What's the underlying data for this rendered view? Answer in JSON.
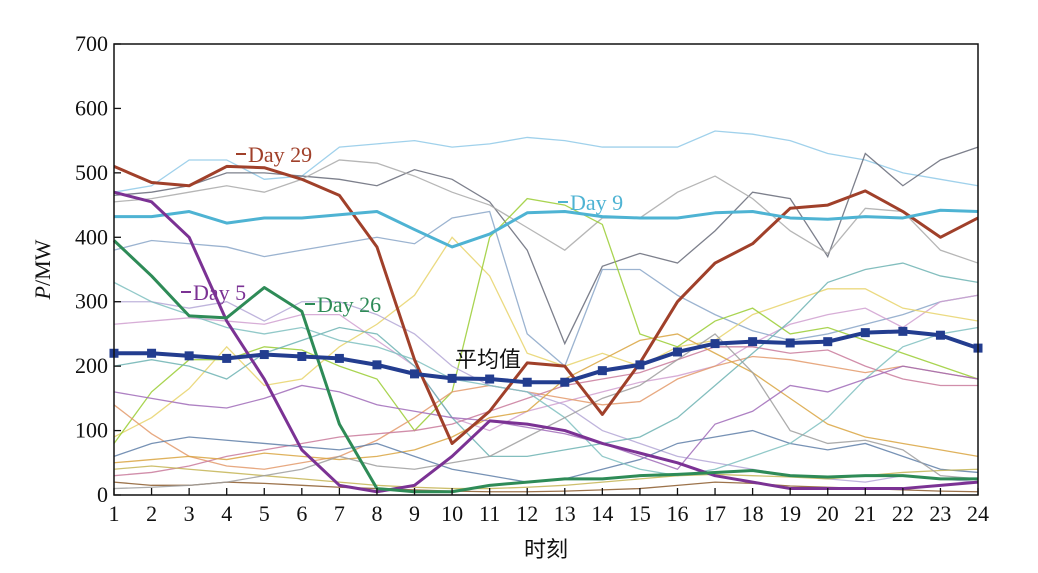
{
  "chart_data": {
    "type": "line",
    "x": [
      1,
      2,
      3,
      4,
      5,
      6,
      7,
      8,
      9,
      10,
      11,
      12,
      13,
      14,
      15,
      16,
      17,
      18,
      19,
      20,
      21,
      22,
      23,
      24
    ],
    "xlabel": "时刻",
    "ylabel": {
      "italic": "P",
      "rest": "/MW"
    },
    "ylim": [
      0,
      700
    ],
    "yticks": [
      0,
      100,
      200,
      300,
      400,
      500,
      600,
      700
    ],
    "grid": false,
    "series": [
      {
        "name": "Day 29",
        "color": "#a0402a",
        "width": 3,
        "values": [
          510,
          485,
          480,
          510,
          508,
          490,
          465,
          385,
          210,
          80,
          130,
          205,
          200,
          125,
          205,
          300,
          360,
          390,
          445,
          450,
          472,
          440,
          400,
          430
        ]
      },
      {
        "name": "Day 9",
        "color": "#4eb3d3",
        "width": 3,
        "values": [
          432,
          432,
          440,
          422,
          430,
          430,
          435,
          440,
          412,
          385,
          405,
          438,
          440,
          432,
          430,
          430,
          438,
          440,
          430,
          428,
          432,
          430,
          442,
          440
        ]
      },
      {
        "name": "Day 5",
        "color": "#7b3294",
        "width": 3,
        "values": [
          470,
          455,
          400,
          270,
          180,
          70,
          15,
          5,
          15,
          60,
          115,
          110,
          100,
          80,
          65,
          50,
          30,
          20,
          10,
          10,
          10,
          10,
          15,
          20
        ]
      },
      {
        "name": "Day 26",
        "color": "#2e8b57",
        "width": 3,
        "values": [
          395,
          340,
          278,
          275,
          322,
          285,
          110,
          10,
          5,
          5,
          15,
          20,
          25,
          25,
          30,
          32,
          35,
          38,
          30,
          28,
          30,
          30,
          25,
          25
        ]
      },
      {
        "name": "平均值",
        "color": "#233d8f",
        "width": 4,
        "marker": "square",
        "values": [
          220,
          220,
          216,
          212,
          218,
          215,
          212,
          202,
          188,
          181,
          180,
          175,
          175,
          193,
          202,
          222,
          235,
          238,
          236,
          238,
          252,
          254,
          248,
          228
        ]
      }
    ],
    "background_series": [
      {
        "color": "#8fc9e8",
        "values": [
          470,
          480,
          520,
          520,
          490,
          495,
          540,
          545,
          550,
          540,
          545,
          555,
          550,
          540,
          540,
          540,
          565,
          560,
          550,
          530,
          520,
          500,
          490,
          480
        ]
      },
      {
        "color": "#666a78",
        "values": [
          465,
          470,
          480,
          500,
          500,
          495,
          490,
          480,
          505,
          490,
          455,
          380,
          235,
          355,
          375,
          360,
          410,
          470,
          460,
          370,
          530,
          480,
          520,
          540
        ]
      },
      {
        "color": "#a9a9a9",
        "values": [
          455,
          460,
          470,
          480,
          470,
          490,
          520,
          515,
          495,
          470,
          450,
          415,
          380,
          430,
          430,
          470,
          495,
          460,
          410,
          375,
          445,
          440,
          380,
          360
        ]
      },
      {
        "color": "#8aa6c8",
        "values": [
          380,
          395,
          390,
          385,
          370,
          380,
          390,
          400,
          390,
          430,
          440,
          250,
          200,
          350,
          350,
          310,
          280,
          255,
          240,
          250,
          265,
          280,
          300,
          310
        ]
      },
      {
        "color": "#d0a0d0",
        "values": [
          265,
          270,
          275,
          270,
          265,
          280,
          280,
          240,
          200,
          120,
          100,
          130,
          145,
          160,
          175,
          185,
          200,
          235,
          265,
          280,
          290,
          260,
          300,
          310
        ]
      },
      {
        "color": "#e8d36b",
        "values": [
          90,
          120,
          165,
          230,
          170,
          180,
          230,
          265,
          310,
          400,
          340,
          220,
          200,
          220,
          200,
          230,
          240,
          280,
          300,
          320,
          320,
          290,
          280,
          270
        ]
      },
      {
        "color": "#9acd32",
        "values": [
          80,
          160,
          210,
          210,
          230,
          225,
          200,
          180,
          100,
          160,
          400,
          460,
          450,
          420,
          250,
          230,
          270,
          290,
          250,
          260,
          240,
          220,
          200,
          180
        ]
      },
      {
        "color": "#e39a6b",
        "values": [
          140,
          95,
          60,
          45,
          40,
          50,
          60,
          85,
          120,
          160,
          170,
          160,
          150,
          140,
          145,
          180,
          200,
          215,
          210,
          200,
          190,
          200,
          190,
          180
        ]
      },
      {
        "color": "#c97a9b",
        "values": [
          30,
          35,
          45,
          60,
          70,
          80,
          90,
          95,
          100,
          110,
          130,
          150,
          170,
          180,
          190,
          210,
          230,
          230,
          220,
          225,
          200,
          180,
          170,
          170
        ]
      },
      {
        "color": "#b4a7d6",
        "values": [
          300,
          300,
          290,
          300,
          270,
          300,
          300,
          280,
          250,
          200,
          170,
          160,
          140,
          100,
          80,
          60,
          50,
          40,
          30,
          25,
          20,
          30,
          25,
          20
        ]
      },
      {
        "color": "#6db3b3",
        "values": [
          200,
          210,
          200,
          180,
          220,
          240,
          260,
          250,
          200,
          120,
          60,
          60,
          70,
          80,
          90,
          120,
          170,
          220,
          270,
          330,
          350,
          360,
          340,
          330
        ]
      },
      {
        "color": "#d9a441",
        "values": [
          50,
          55,
          60,
          55,
          65,
          60,
          55,
          60,
          70,
          90,
          120,
          130,
          180,
          210,
          240,
          250,
          220,
          190,
          150,
          110,
          90,
          80,
          70,
          60
        ]
      },
      {
        "color": "#5f7fa8",
        "values": [
          60,
          80,
          90,
          85,
          80,
          75,
          70,
          80,
          60,
          40,
          30,
          20,
          25,
          40,
          55,
          80,
          90,
          100,
          80,
          70,
          80,
          60,
          40,
          35
        ]
      },
      {
        "color": "#8b5a2b",
        "values": [
          20,
          15,
          15,
          20,
          18,
          15,
          12,
          10,
          8,
          6,
          5,
          5,
          6,
          8,
          10,
          15,
          20,
          18,
          14,
          12,
          10,
          8,
          6,
          5
        ]
      },
      {
        "color": "#7fbfbf",
        "values": [
          330,
          300,
          280,
          260,
          250,
          260,
          240,
          230,
          210,
          180,
          170,
          160,
          120,
          60,
          40,
          30,
          40,
          60,
          80,
          120,
          180,
          230,
          250,
          260
        ]
      },
      {
        "color": "#c4b454",
        "values": [
          40,
          45,
          40,
          35,
          30,
          25,
          20,
          15,
          12,
          10,
          10,
          12,
          15,
          20,
          25,
          30,
          32,
          30,
          28,
          25,
          30,
          35,
          38,
          40
        ]
      },
      {
        "color": "#9e9e9e",
        "values": [
          10,
          12,
          15,
          20,
          30,
          40,
          60,
          45,
          40,
          50,
          60,
          90,
          120,
          150,
          170,
          210,
          250,
          190,
          100,
          80,
          85,
          70,
          30,
          25
        ]
      },
      {
        "color": "#a06bb8",
        "values": [
          160,
          150,
          140,
          135,
          150,
          170,
          160,
          140,
          130,
          120,
          115,
          105,
          95,
          80,
          60,
          40,
          110,
          130,
          170,
          160,
          180,
          200,
          190,
          180
        ]
      }
    ],
    "annotations": [
      {
        "text": "Day 29",
        "series": "Day 29"
      },
      {
        "text": "Day 9",
        "series": "Day 9"
      },
      {
        "text": "Day 5",
        "series": "Day 5"
      },
      {
        "text": "Day 26",
        "series": "Day 26"
      },
      {
        "text": "平均值",
        "series": "平均值"
      }
    ]
  }
}
